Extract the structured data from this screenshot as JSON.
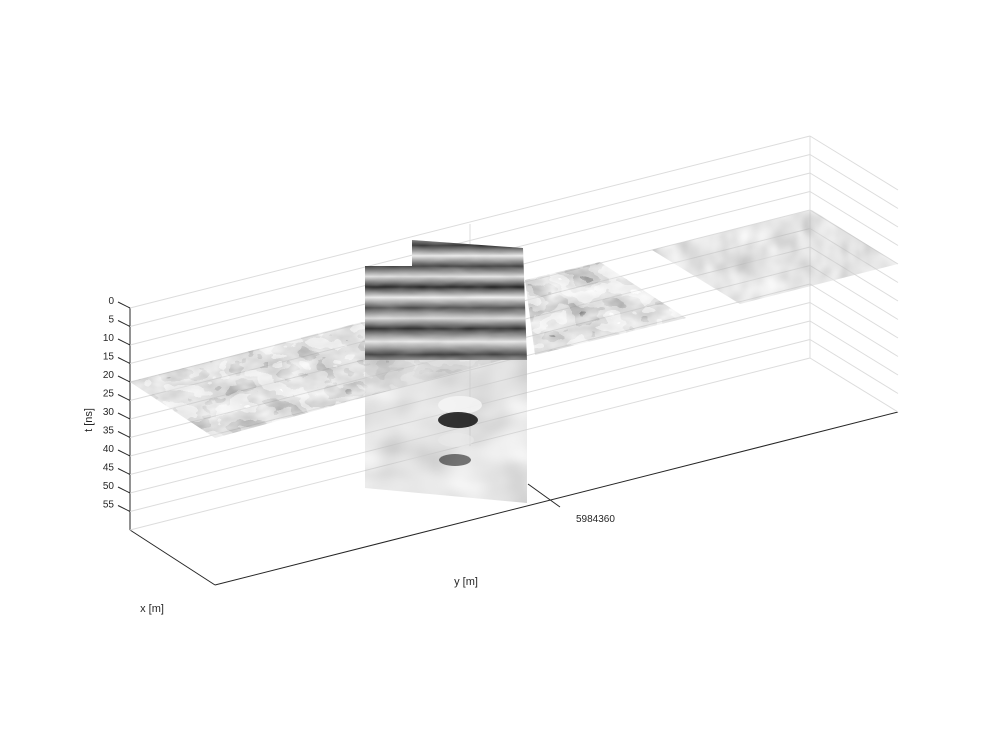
{
  "chart_data": {
    "type": "3d-slice",
    "title": "",
    "xlabel": "x [m]",
    "ylabel": "y [m]",
    "zlabel": "t [ns]",
    "z_ticks": [
      "0",
      "5",
      "10",
      "15",
      "20",
      "25",
      "30",
      "35",
      "40",
      "45",
      "50",
      "55"
    ],
    "z_range": [
      0,
      60
    ],
    "y_ticks": [
      "5984360"
    ],
    "grid": true,
    "colormap": "gray",
    "slices": [
      {
        "orientation": "horizontal",
        "t": 23
      },
      {
        "orientation": "vertical"
      }
    ]
  }
}
